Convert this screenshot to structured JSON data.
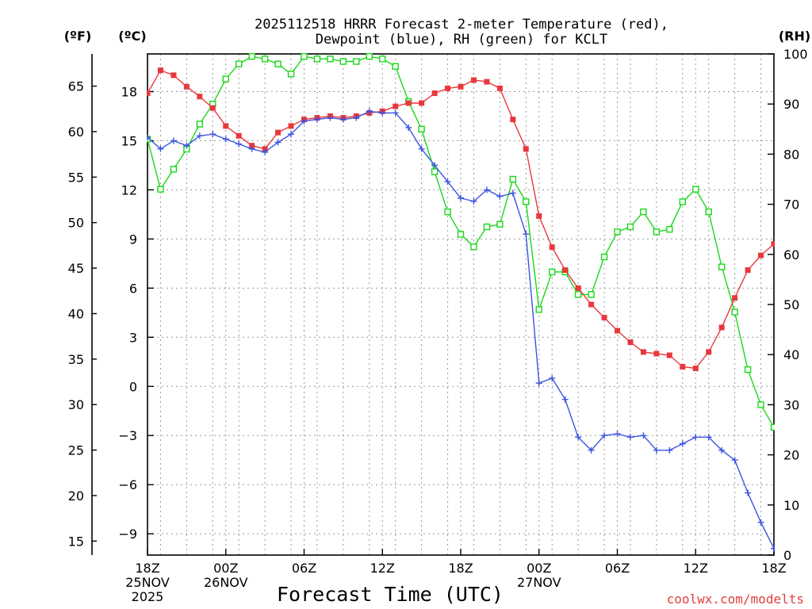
{
  "chart_data": {
    "type": "line",
    "title_line1": "2025112518 HRRR Forecast 2-meter Temperature (red),",
    "title_line2": "Dewpoint (blue), RH (green) for KCLT",
    "xlabel": "Forecast Time (UTC)",
    "watermark": "coolwx.com/modelts",
    "units": {
      "fahrenheit": "(ºF)",
      "celsius": "(ºC)",
      "rh": "(RH)"
    },
    "x_tick_labels": [
      {
        "hour": 0,
        "lines": [
          "18Z",
          "25NOV",
          "2025"
        ]
      },
      {
        "hour": 6,
        "lines": [
          "00Z",
          "26NOV"
        ]
      },
      {
        "hour": 12,
        "lines": [
          "06Z"
        ]
      },
      {
        "hour": 18,
        "lines": [
          "12Z"
        ]
      },
      {
        "hour": 24,
        "lines": [
          "18Z"
        ]
      },
      {
        "hour": 30,
        "lines": [
          "00Z",
          "27NOV"
        ]
      },
      {
        "hour": 36,
        "lines": [
          "06Z"
        ]
      },
      {
        "hour": 42,
        "lines": [
          "12Z"
        ]
      },
      {
        "hour": 48,
        "lines": [
          "18Z"
        ]
      }
    ],
    "x_range_hours": [
      0,
      48
    ],
    "celsius_axis": {
      "range": [
        -10.3,
        20.3
      ],
      "ticks": [
        -9,
        -6,
        -3,
        0,
        3,
        6,
        9,
        12,
        15,
        18
      ]
    },
    "fahrenheit_axis": {
      "ticks": [
        15,
        20,
        25,
        30,
        35,
        40,
        45,
        50,
        55,
        60,
        65
      ]
    },
    "rh_axis": {
      "range": [
        0,
        100
      ],
      "ticks": [
        0,
        10,
        20,
        30,
        40,
        50,
        60,
        70,
        80,
        90,
        100
      ]
    },
    "grid": true,
    "series": [
      {
        "name": "2-meter Temperature",
        "unit": "C",
        "color": "#e8383d",
        "marker": "filled-square",
        "values": [
          17.9,
          19.3,
          19.0,
          18.3,
          17.7,
          17.0,
          15.9,
          15.3,
          14.7,
          14.5,
          15.5,
          15.9,
          16.3,
          16.4,
          16.5,
          16.4,
          16.5,
          16.7,
          16.8,
          17.1,
          17.3,
          17.3,
          17.9,
          18.2,
          18.3,
          18.7,
          18.6,
          18.2,
          16.3,
          14.5,
          10.4,
          8.5,
          7.1,
          6.0,
          5.0,
          4.2,
          3.4,
          2.7,
          2.1,
          2.0,
          1.9,
          1.2,
          1.1,
          2.1,
          3.6,
          5.4,
          7.1,
          8.0,
          8.7
        ]
      },
      {
        "name": "Dewpoint",
        "unit": "C",
        "color": "#3b54e0",
        "marker": "plus",
        "values": [
          15.2,
          14.5,
          15.0,
          14.7,
          15.3,
          15.4,
          15.1,
          14.8,
          14.5,
          14.3,
          14.9,
          15.4,
          16.2,
          16.3,
          16.4,
          16.3,
          16.4,
          16.8,
          16.7,
          16.7,
          15.8,
          14.5,
          13.5,
          12.5,
          11.5,
          11.3,
          12.0,
          11.6,
          11.8,
          9.3,
          0.2,
          0.5,
          -0.8,
          -3.1,
          -3.9,
          -3.0,
          -2.9,
          -3.1,
          -3.0,
          -3.9,
          -3.9,
          -3.5,
          -3.1,
          -3.1,
          -3.9,
          -4.5,
          -6.5,
          -8.3,
          -9.9
        ]
      },
      {
        "name": "RH",
        "unit": "%",
        "color": "#18d818",
        "marker": "open-square",
        "values": [
          83,
          73,
          77,
          81,
          86,
          90,
          95,
          98,
          99.5,
          99,
          98,
          96,
          99.5,
          99,
          99,
          98.5,
          98.5,
          99.5,
          99,
          97.5,
          90.5,
          85,
          76.5,
          68.5,
          64,
          61.5,
          65.5,
          66,
          75,
          70.5,
          49,
          56.5,
          56.5,
          52,
          52,
          59.5,
          64.5,
          65.5,
          68.5,
          64.5,
          65,
          70.5,
          73,
          68.5,
          57.5,
          48.5,
          37,
          30,
          25.5
        ]
      }
    ]
  }
}
